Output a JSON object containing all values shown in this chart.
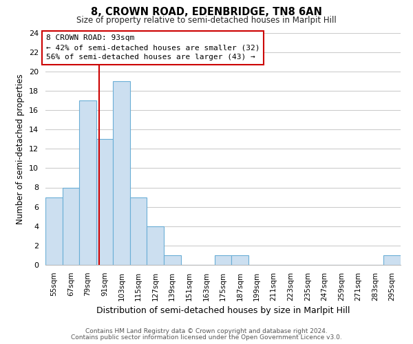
{
  "title": "8, CROWN ROAD, EDENBRIDGE, TN8 6AN",
  "subtitle": "Size of property relative to semi-detached houses in Marlpit Hill",
  "bar_edges": [
    55,
    67,
    79,
    91,
    103,
    115,
    127,
    139,
    151,
    163,
    175,
    187,
    199,
    211,
    223,
    235,
    247,
    259,
    271,
    283,
    295
  ],
  "bar_heights": [
    7,
    8,
    17,
    13,
    19,
    7,
    4,
    1,
    0,
    0,
    1,
    1,
    0,
    0,
    0,
    0,
    0,
    0,
    0,
    0,
    1
  ],
  "bar_color": "#ccdff0",
  "bar_edge_color": "#6aaed6",
  "property_line_x": 93,
  "property_line_color": "#cc0000",
  "annotation_title": "8 CROWN ROAD: 93sqm",
  "annotation_line1": "← 42% of semi-detached houses are smaller (32)",
  "annotation_line2": "56% of semi-detached houses are larger (43) →",
  "annotation_box_color": "#ffffff",
  "annotation_box_edge": "#cc0000",
  "xlabel": "Distribution of semi-detached houses by size in Marlpit Hill",
  "ylabel": "Number of semi-detached properties",
  "tick_labels": [
    "55sqm",
    "67sqm",
    "79sqm",
    "91sqm",
    "103sqm",
    "115sqm",
    "127sqm",
    "139sqm",
    "151sqm",
    "163sqm",
    "175sqm",
    "187sqm",
    "199sqm",
    "211sqm",
    "223sqm",
    "235sqm",
    "247sqm",
    "259sqm",
    "271sqm",
    "283sqm",
    "295sqm"
  ],
  "ylim": [
    0,
    24
  ],
  "yticks": [
    0,
    2,
    4,
    6,
    8,
    10,
    12,
    14,
    16,
    18,
    20,
    22,
    24
  ],
  "footer_line1": "Contains HM Land Registry data © Crown copyright and database right 2024.",
  "footer_line2": "Contains public sector information licensed under the Open Government Licence v3.0.",
  "bg_color": "#ffffff",
  "grid_color": "#cccccc"
}
